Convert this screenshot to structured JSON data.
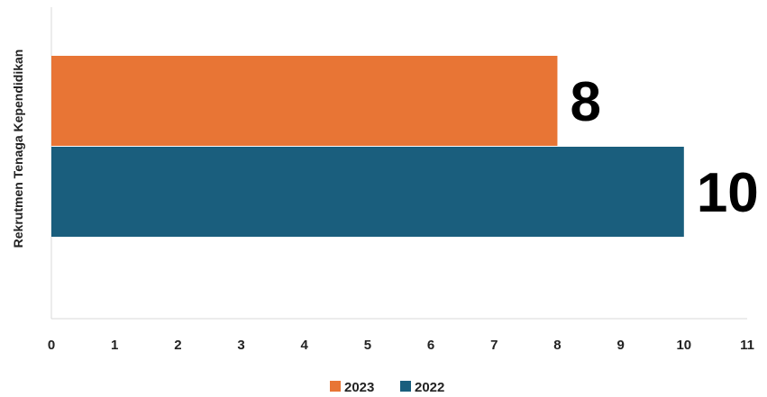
{
  "chart_data": {
    "type": "bar",
    "orientation": "horizontal",
    "categories": [
      "Rekrutmen Tenaga Kependidikan"
    ],
    "series": [
      {
        "name": "2023",
        "values": [
          8
        ],
        "color": "#E87535"
      },
      {
        "name": "2022",
        "values": [
          10
        ],
        "color": "#1A5E7D"
      }
    ],
    "data_labels": [
      "8",
      "10"
    ],
    "xlim": [
      0,
      11
    ],
    "x_ticks": [
      "0",
      "1",
      "2",
      "3",
      "4",
      "5",
      "6",
      "7",
      "8",
      "9",
      "10",
      "11"
    ],
    "grid": false,
    "legend_position": "bottom"
  }
}
